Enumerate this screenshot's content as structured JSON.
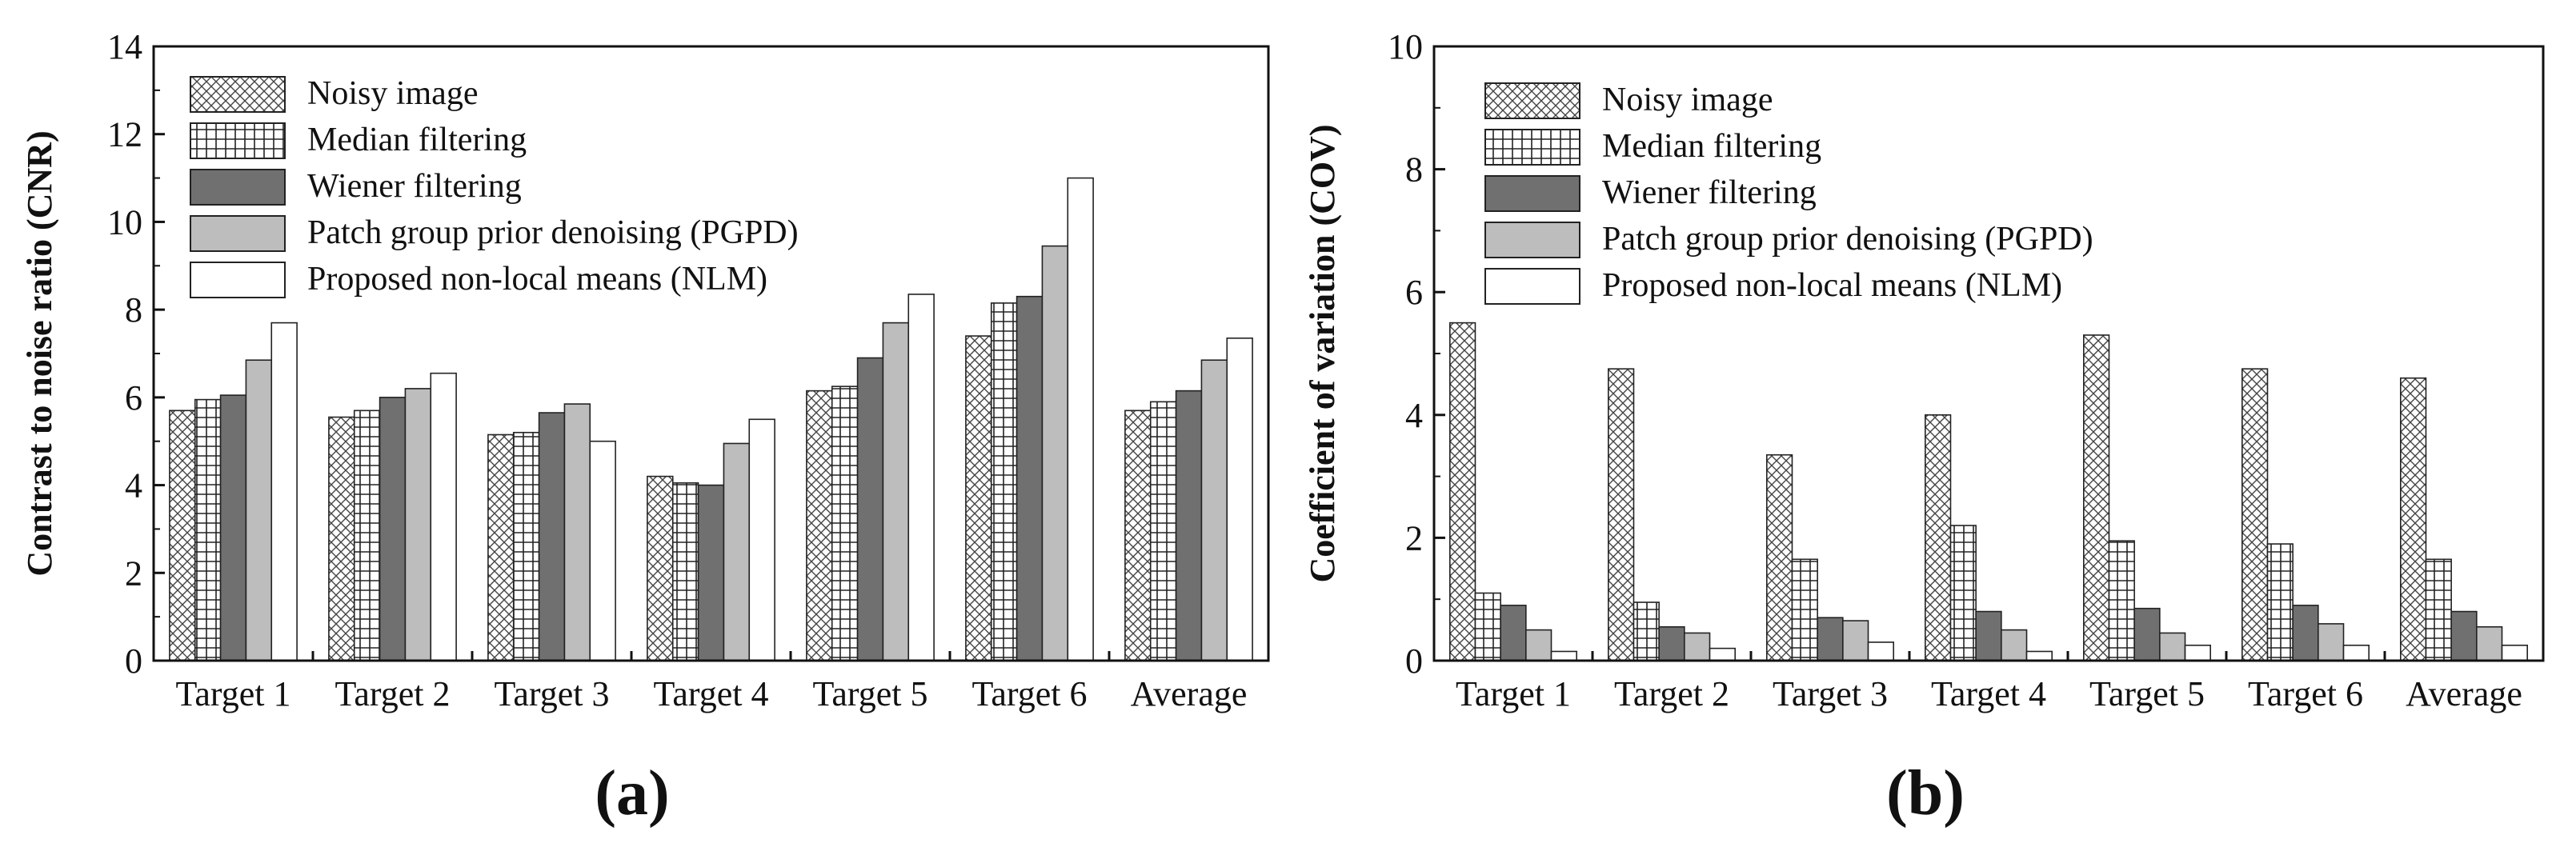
{
  "legend": [
    {
      "label": "Noisy image",
      "fill": "url(#pat-noisy)"
    },
    {
      "label": "Median filtering",
      "fill": "url(#pat-median)"
    },
    {
      "label": "Wiener filtering",
      "fill": "#707070"
    },
    {
      "label": "Patch group prior denoising (PGPD)",
      "fill": "#bdbdbd"
    },
    {
      "label": "Proposed non-local means (NLM)",
      "fill": "#ffffff"
    }
  ],
  "chart_data": [
    {
      "type": "bar",
      "panel_label": "(a)",
      "ylabel": "Contrast to noise ratio (CNR)",
      "xlabel": "",
      "ylim": [
        0,
        14
      ],
      "yticks": [
        0,
        2,
        4,
        6,
        8,
        10,
        12,
        14
      ],
      "categories": [
        "Target 1",
        "Target 2",
        "Target 3",
        "Target 4",
        "Target 5",
        "Target 6",
        "Average"
      ],
      "series": [
        {
          "name": "Noisy image",
          "values": [
            5.7,
            5.55,
            5.15,
            4.2,
            6.15,
            7.4,
            5.7
          ]
        },
        {
          "name": "Median filtering",
          "values": [
            5.95,
            5.7,
            5.2,
            4.05,
            6.25,
            8.15,
            5.9
          ]
        },
        {
          "name": "Wiener filtering",
          "values": [
            6.05,
            6.0,
            5.65,
            4.0,
            6.9,
            8.3,
            6.15
          ]
        },
        {
          "name": "Patch group prior denoising (PGPD)",
          "values": [
            6.85,
            6.2,
            5.85,
            4.95,
            7.7,
            9.45,
            6.85
          ]
        },
        {
          "name": "Proposed non-local means (NLM)",
          "values": [
            7.7,
            6.55,
            5.0,
            5.5,
            8.35,
            11.0,
            7.35
          ]
        }
      ]
    },
    {
      "type": "bar",
      "panel_label": "(b)",
      "ylabel": "Coefficient of variation (COV)",
      "xlabel": "",
      "ylim": [
        0,
        10
      ],
      "yticks": [
        0,
        2,
        4,
        6,
        8,
        10
      ],
      "categories": [
        "Target 1",
        "Target 2",
        "Target 3",
        "Target 4",
        "Target 5",
        "Target 6",
        "Average"
      ],
      "series": [
        {
          "name": "Noisy image",
          "values": [
            5.5,
            4.75,
            3.35,
            4.0,
            5.3,
            4.75,
            4.6
          ]
        },
        {
          "name": "Median filtering",
          "values": [
            1.1,
            0.95,
            1.65,
            2.2,
            1.95,
            1.9,
            1.65
          ]
        },
        {
          "name": "Wiener filtering",
          "values": [
            0.9,
            0.55,
            0.7,
            0.8,
            0.85,
            0.9,
            0.8
          ]
        },
        {
          "name": "Patch group prior denoising (PGPD)",
          "values": [
            0.5,
            0.45,
            0.65,
            0.5,
            0.45,
            0.6,
            0.55
          ]
        },
        {
          "name": "Proposed non-local means (NLM)",
          "values": [
            0.15,
            0.2,
            0.3,
            0.15,
            0.25,
            0.25,
            0.25
          ]
        }
      ]
    }
  ]
}
